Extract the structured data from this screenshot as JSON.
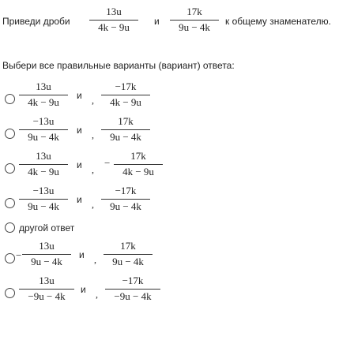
{
  "task": {
    "prefix": "Приведи дроби",
    "frac1": {
      "num": "13u",
      "den": "4k − 9u"
    },
    "connector": "и",
    "frac2": {
      "num": "17k",
      "den": "9u − 4k"
    },
    "suffix": "к общему знаменателю."
  },
  "instruction": "Выбери все правильные варианты (вариант) ответа:",
  "options": [
    {
      "f1": {
        "num": "13u",
        "den": "4k − 9u"
      },
      "f2": {
        "num": "−17k",
        "den": "4k − 9u"
      },
      "connector": "и",
      "comma": ","
    },
    {
      "f1": {
        "num": "−13u",
        "den": "9u − 4k"
      },
      "f2": {
        "num": "17k",
        "den": "9u − 4k"
      },
      "connector": "и",
      "comma": ","
    },
    {
      "f1": {
        "num": "13u",
        "den": "4k − 9u"
      },
      "f2": {
        "num": "17k",
        "den": "4k − 9u"
      },
      "connector": "и",
      "comma": ",",
      "f2_lead": "−"
    },
    {
      "f1": {
        "num": "−13u",
        "den": "9u − 4k"
      },
      "f2": {
        "num": "−17k",
        "den": "9u − 4k"
      },
      "connector": "и",
      "comma": ","
    },
    {
      "label": "другой ответ"
    },
    {
      "f1": {
        "num": "13u",
        "den": "9u − 4k"
      },
      "f2": {
        "num": "17k",
        "den": "9u − 4k"
      },
      "connector": "и",
      "comma": ",",
      "f1_lead": "−"
    },
    {
      "f1": {
        "num": "13u",
        "den": "−9u − 4k"
      },
      "f2": {
        "num": "−17k",
        "den": "−9u − 4k"
      },
      "connector": "и",
      "comma": ","
    }
  ]
}
